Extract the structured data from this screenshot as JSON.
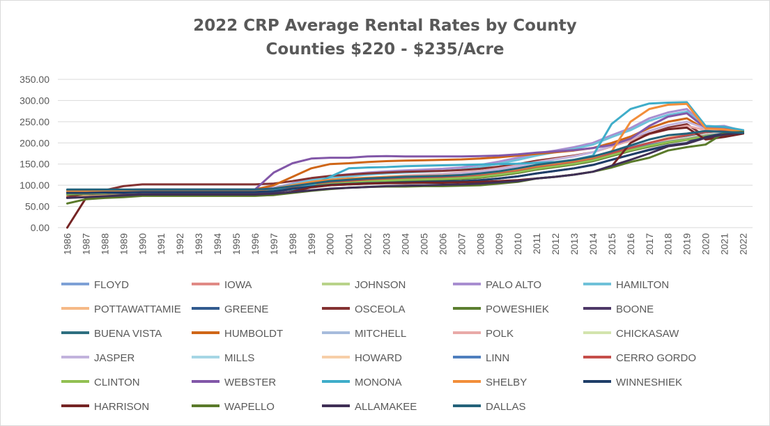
{
  "chart_data": {
    "type": "line",
    "title": "2022 CRP Average Rental Rates by County",
    "subtitle": "Counties $220 - $235/Acre",
    "xlabel": "",
    "ylabel": "",
    "ylim": [
      0,
      350
    ],
    "yticks": [
      "0.00",
      "50.00",
      "100.00",
      "150.00",
      "200.00",
      "250.00",
      "300.00",
      "350.00"
    ],
    "x": [
      "1986",
      "1987",
      "1988",
      "1989",
      "1990",
      "1991",
      "1992",
      "1993",
      "1994",
      "1995",
      "1996",
      "1997",
      "1998",
      "1999",
      "2000",
      "2001",
      "2002",
      "2003",
      "2004",
      "2005",
      "2006",
      "2007",
      "2008",
      "2009",
      "2010",
      "2011",
      "2012",
      "2013",
      "2014",
      "2015",
      "2016",
      "2017",
      "2018",
      "2019",
      "2020",
      "2021",
      "2022"
    ],
    "grid": "horizontal",
    "legend_position": "bottom",
    "series": [
      {
        "name": "FLOYD",
        "color": "#7ea1d6",
        "values": [
          85,
          86,
          87,
          88,
          89,
          90,
          90,
          90,
          90,
          90,
          90,
          92,
          98,
          104,
          110,
          113,
          116,
          118,
          120,
          121,
          122,
          124,
          127,
          132,
          138,
          146,
          152,
          158,
          166,
          178,
          190,
          200,
          208,
          214,
          222,
          224,
          228
        ]
      },
      {
        "name": "IOWA",
        "color": "#e08a85",
        "values": [
          80,
          81,
          82,
          83,
          84,
          85,
          85,
          85,
          85,
          85,
          85,
          87,
          93,
          99,
          104,
          107,
          110,
          112,
          114,
          115,
          116,
          118,
          121,
          126,
          132,
          140,
          146,
          152,
          160,
          172,
          185,
          196,
          206,
          214,
          222,
          226,
          229
        ]
      },
      {
        "name": "JOHNSON",
        "color": "#b9d38a",
        "values": [
          82,
          83,
          84,
          85,
          86,
          87,
          87,
          87,
          87,
          87,
          87,
          89,
          94,
          100,
          105,
          108,
          111,
          113,
          115,
          116,
          117,
          119,
          122,
          127,
          133,
          141,
          147,
          153,
          161,
          173,
          185,
          195,
          204,
          211,
          219,
          224,
          228
        ]
      },
      {
        "name": "PALO ALTO",
        "color": "#a88ed0",
        "values": [
          88,
          88,
          89,
          89,
          90,
          90,
          90,
          90,
          90,
          90,
          90,
          94,
          104,
          115,
          122,
          126,
          130,
          133,
          135,
          137,
          139,
          142,
          148,
          156,
          165,
          175,
          182,
          190,
          200,
          218,
          235,
          258,
          272,
          280,
          238,
          240,
          228
        ]
      },
      {
        "name": "HAMILTON",
        "color": "#6fc1d9",
        "values": [
          86,
          86,
          87,
          87,
          88,
          88,
          88,
          88,
          88,
          88,
          88,
          92,
          102,
          112,
          118,
          121,
          125,
          128,
          130,
          132,
          134,
          137,
          143,
          151,
          160,
          170,
          178,
          186,
          196,
          214,
          230,
          252,
          266,
          274,
          236,
          238,
          226
        ]
      },
      {
        "name": "POTTAWATTAMIE",
        "color": "#f6b987",
        "values": [
          75,
          76,
          77,
          78,
          80,
          81,
          81,
          81,
          81,
          81,
          81,
          84,
          90,
          96,
          101,
          104,
          107,
          109,
          111,
          112,
          113,
          115,
          118,
          123,
          129,
          137,
          143,
          149,
          158,
          172,
          186,
          200,
          212,
          220,
          226,
          228,
          230
        ]
      },
      {
        "name": "GREENE",
        "color": "#325b8f",
        "values": [
          84,
          85,
          86,
          87,
          88,
          89,
          89,
          89,
          89,
          89,
          89,
          91,
          97,
          103,
          108,
          111,
          114,
          116,
          118,
          119,
          120,
          122,
          125,
          130,
          136,
          144,
          150,
          156,
          164,
          176,
          188,
          198,
          206,
          212,
          220,
          224,
          227
        ]
      },
      {
        "name": "OSCEOLA",
        "color": "#843232",
        "values": [
          72,
          80,
          88,
          98,
          102,
          102,
          102,
          102,
          102,
          102,
          102,
          104,
          110,
          117,
          122,
          125,
          128,
          130,
          132,
          133,
          134,
          136,
          139,
          144,
          150,
          158,
          164,
          170,
          178,
          192,
          206,
          222,
          236,
          244,
          215,
          218,
          222
        ]
      },
      {
        "name": "POWESHIEK",
        "color": "#5c7f30",
        "values": [
          78,
          79,
          80,
          81,
          82,
          83,
          83,
          83,
          83,
          83,
          83,
          85,
          90,
          96,
          101,
          104,
          107,
          109,
          111,
          112,
          113,
          115,
          118,
          123,
          129,
          137,
          143,
          149,
          157,
          169,
          181,
          191,
          200,
          207,
          215,
          220,
          224
        ]
      },
      {
        "name": "BOONE",
        "color": "#4e3968",
        "values": [
          80,
          80,
          81,
          81,
          82,
          82,
          82,
          82,
          82,
          82,
          82,
          84,
          90,
          96,
          100,
          102,
          104,
          105,
          106,
          107,
          108,
          109,
          112,
          116,
          121,
          128,
          134,
          140,
          148,
          160,
          172,
          184,
          194,
          200,
          220,
          226,
          228
        ]
      },
      {
        "name": "BUENA VISTA",
        "color": "#2e6f80",
        "values": [
          82,
          82,
          83,
          83,
          84,
          84,
          84,
          84,
          84,
          84,
          84,
          87,
          94,
          100,
          105,
          108,
          111,
          113,
          115,
          117,
          119,
          121,
          125,
          130,
          136,
          144,
          150,
          156,
          164,
          176,
          188,
          200,
          210,
          216,
          226,
          228,
          230
        ]
      },
      {
        "name": "HUMBOLDT",
        "color": "#cf6617",
        "values": [
          88,
          88,
          89,
          89,
          90,
          90,
          90,
          90,
          90,
          90,
          90,
          100,
          120,
          140,
          150,
          152,
          155,
          157,
          158,
          159,
          160,
          161,
          163,
          166,
          170,
          174,
          178,
          182,
          188,
          200,
          215,
          235,
          250,
          258,
          232,
          234,
          228
        ]
      },
      {
        "name": "MITCHELL",
        "color": "#a7bcdc",
        "values": [
          86,
          86,
          87,
          87,
          88,
          88,
          88,
          88,
          88,
          88,
          88,
          90,
          96,
          102,
          107,
          110,
          113,
          115,
          117,
          118,
          119,
          121,
          124,
          129,
          135,
          143,
          149,
          155,
          163,
          175,
          187,
          197,
          206,
          212,
          220,
          224,
          228
        ]
      },
      {
        "name": "POLK",
        "color": "#e9aaa8",
        "values": [
          83,
          84,
          85,
          86,
          87,
          88,
          88,
          88,
          88,
          88,
          88,
          90,
          96,
          103,
          109,
          113,
          117,
          120,
          123,
          125,
          127,
          130,
          134,
          140,
          147,
          155,
          162,
          169,
          178,
          192,
          206,
          220,
          232,
          240,
          230,
          232,
          226
        ]
      },
      {
        "name": "CHICKASAW",
        "color": "#d3e4ae",
        "values": [
          84,
          85,
          86,
          87,
          88,
          89,
          89,
          89,
          89,
          89,
          89,
          91,
          96,
          102,
          107,
          110,
          113,
          115,
          117,
          118,
          119,
          121,
          124,
          129,
          135,
          143,
          149,
          155,
          163,
          175,
          187,
          197,
          205,
          211,
          219,
          223,
          227
        ]
      },
      {
        "name": "JASPER",
        "color": "#c2b3dd",
        "values": [
          85,
          85,
          86,
          86,
          87,
          87,
          87,
          87,
          87,
          87,
          87,
          90,
          98,
          106,
          111,
          114,
          117,
          120,
          122,
          124,
          126,
          128,
          132,
          138,
          145,
          154,
          161,
          168,
          178,
          194,
          210,
          228,
          242,
          250,
          234,
          236,
          228
        ]
      },
      {
        "name": "MILLS",
        "color": "#a6d6e5",
        "values": [
          80,
          81,
          82,
          83,
          84,
          85,
          85,
          85,
          85,
          85,
          85,
          87,
          93,
          99,
          104,
          107,
          110,
          112,
          114,
          115,
          116,
          118,
          121,
          126,
          132,
          140,
          146,
          152,
          160,
          172,
          185,
          196,
          205,
          212,
          220,
          224,
          229
        ]
      },
      {
        "name": "HOWARD",
        "color": "#f7cfa8",
        "values": [
          82,
          83,
          84,
          85,
          86,
          87,
          87,
          87,
          87,
          87,
          87,
          89,
          95,
          101,
          106,
          109,
          112,
          114,
          116,
          117,
          118,
          120,
          123,
          128,
          134,
          142,
          148,
          154,
          162,
          174,
          186,
          196,
          205,
          211,
          219,
          223,
          227
        ]
      },
      {
        "name": "LINN",
        "color": "#4f7fbe",
        "values": [
          84,
          84,
          85,
          85,
          86,
          86,
          86,
          86,
          86,
          86,
          86,
          88,
          94,
          100,
          105,
          108,
          111,
          113,
          115,
          116,
          117,
          119,
          122,
          127,
          133,
          141,
          147,
          153,
          161,
          173,
          185,
          195,
          203,
          209,
          217,
          222,
          226
        ]
      },
      {
        "name": "CERRO GORDO",
        "color": "#c54e4a",
        "values": [
          86,
          86,
          87,
          87,
          88,
          88,
          88,
          88,
          88,
          88,
          88,
          90,
          96,
          102,
          107,
          110,
          113,
          115,
          117,
          118,
          119,
          121,
          124,
          129,
          135,
          143,
          149,
          155,
          163,
          175,
          188,
          200,
          210,
          218,
          226,
          228,
          226
        ]
      },
      {
        "name": "CLINTON",
        "color": "#92c052",
        "values": [
          80,
          81,
          82,
          83,
          84,
          85,
          85,
          85,
          85,
          85,
          85,
          87,
          92,
          98,
          103,
          106,
          109,
          111,
          113,
          114,
          115,
          117,
          120,
          125,
          131,
          139,
          145,
          151,
          159,
          171,
          183,
          193,
          202,
          208,
          216,
          221,
          225
        ]
      },
      {
        "name": "WEBSTER",
        "color": "#8257a8",
        "values": [
          88,
          88,
          89,
          89,
          90,
          90,
          90,
          90,
          90,
          90,
          90,
          130,
          152,
          163,
          165,
          165,
          168,
          169,
          168,
          168,
          168,
          168,
          169,
          170,
          173,
          177,
          180,
          183,
          188,
          195,
          210,
          240,
          262,
          270,
          235,
          236,
          228
        ]
      },
      {
        "name": "MONONA",
        "color": "#3fadc9",
        "values": [
          88,
          88,
          88,
          88,
          88,
          88,
          88,
          88,
          88,
          88,
          88,
          89,
          91,
          100,
          120,
          140,
          142,
          143,
          145,
          146,
          147,
          148,
          149,
          150,
          151,
          153,
          155,
          160,
          170,
          245,
          280,
          293,
          295,
          296,
          240,
          238,
          230
        ]
      },
      {
        "name": "SHELBY",
        "color": "#f28e3a",
        "values": [
          86,
          86,
          87,
          87,
          88,
          88,
          88,
          88,
          88,
          88,
          88,
          92,
          100,
          108,
          113,
          116,
          118,
          120,
          121,
          122,
          123,
          124,
          127,
          132,
          138,
          146,
          152,
          158,
          166,
          180,
          250,
          280,
          290,
          292,
          234,
          232,
          226
        ]
      },
      {
        "name": "WINNESHIEK",
        "color": "#1f3e68",
        "values": [
          82,
          82,
          83,
          83,
          84,
          84,
          84,
          84,
          84,
          84,
          84,
          86,
          92,
          97,
          101,
          103,
          105,
          106,
          107,
          108,
          109,
          110,
          112,
          116,
          121,
          128,
          134,
          140,
          148,
          160,
          172,
          183,
          193,
          199,
          214,
          222,
          226
        ]
      },
      {
        "name": "HARRISON",
        "color": "#752424",
        "values": [
          0,
          70,
          72,
          74,
          76,
          76,
          76,
          76,
          76,
          76,
          76,
          77,
          85,
          95,
          100,
          102,
          104,
          105,
          105,
          106,
          106,
          107,
          108,
          110,
          112,
          116,
          120,
          125,
          132,
          145,
          200,
          222,
          232,
          236,
          208,
          214,
          222
        ]
      },
      {
        "name": "WAPELLO",
        "color": "#5a7a2a",
        "values": [
          57,
          67,
          70,
          72,
          75,
          75,
          75,
          75,
          75,
          75,
          75,
          77,
          82,
          87,
          91,
          94,
          96,
          97,
          97,
          98,
          98,
          99,
          100,
          104,
          108,
          116,
          120,
          125,
          132,
          142,
          155,
          165,
          182,
          190,
          196,
          224,
          226
        ]
      },
      {
        "name": "ALLAMAKEE",
        "color": "#3f2f55",
        "values": [
          70,
          72,
          74,
          76,
          78,
          78,
          78,
          78,
          78,
          78,
          78,
          80,
          84,
          88,
          92,
          94,
          96,
          98,
          99,
          100,
          101,
          102,
          104,
          107,
          110,
          116,
          120,
          125,
          132,
          146,
          160,
          175,
          192,
          198,
          212,
          220,
          224
        ]
      },
      {
        "name": "DALLAS",
        "color": "#24627a",
        "values": [
          90,
          90,
          90,
          90,
          90,
          90,
          90,
          90,
          90,
          90,
          90,
          92,
          98,
          104,
          110,
          113,
          116,
          118,
          120,
          121,
          122,
          124,
          128,
          133,
          140,
          148,
          154,
          160,
          168,
          180,
          194,
          208,
          218,
          222,
          228,
          226,
          224
        ]
      }
    ]
  }
}
